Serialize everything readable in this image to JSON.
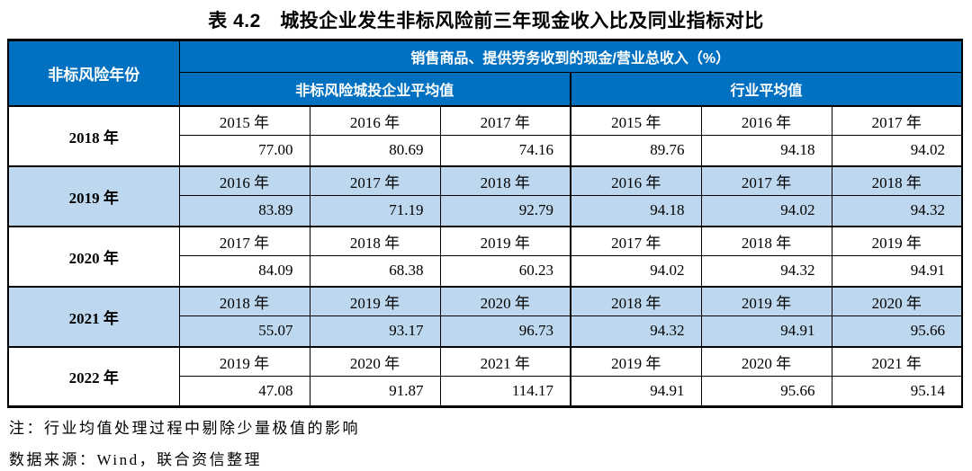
{
  "title": "表 4.2　城投企业发生非标风险前三年现金收入比及同业指标对比",
  "table": {
    "row_header": "非标风险年份",
    "metric_header": "销售商品、提供劳务收到的现金/营业总收入（%）",
    "group_headers": [
      "非标风险城投企业平均值",
      "行业平均值"
    ],
    "rows": [
      {
        "risk_year": "2018 年",
        "years": [
          "2015 年",
          "2016 年",
          "2017 年",
          "2015 年",
          "2016 年",
          "2017 年"
        ],
        "values": [
          "77.00",
          "80.69",
          "74.16",
          "89.76",
          "94.18",
          "94.02"
        ],
        "highlighted": false
      },
      {
        "risk_year": "2019 年",
        "years": [
          "2016 年",
          "2017 年",
          "2018 年",
          "2016 年",
          "2017 年",
          "2018 年"
        ],
        "values": [
          "83.89",
          "71.19",
          "92.79",
          "94.18",
          "94.02",
          "94.32"
        ],
        "highlighted": true
      },
      {
        "risk_year": "2020 年",
        "years": [
          "2017 年",
          "2018 年",
          "2019 年",
          "2017 年",
          "2018 年",
          "2019 年"
        ],
        "values": [
          "84.09",
          "68.38",
          "60.23",
          "94.02",
          "94.32",
          "94.91"
        ],
        "highlighted": false
      },
      {
        "risk_year": "2021 年",
        "years": [
          "2018 年",
          "2019 年",
          "2020 年",
          "2018 年",
          "2019 年",
          "2020 年"
        ],
        "values": [
          "55.07",
          "93.17",
          "96.73",
          "94.32",
          "94.91",
          "95.66"
        ],
        "highlighted": true
      },
      {
        "risk_year": "2022 年",
        "years": [
          "2019 年",
          "2020 年",
          "2021 年",
          "2019 年",
          "2020 年",
          "2021 年"
        ],
        "values": [
          "47.08",
          "91.87",
          "114.17",
          "94.91",
          "95.66",
          "95.14"
        ],
        "highlighted": false
      }
    ]
  },
  "notes": [
    "注：行业均值处理过程中剔除少量极值的影响",
    "数据来源：Wind，联合资信整理"
  ],
  "colors": {
    "header_blue": "#0070C0",
    "highlight_blue": "#BDD7EE",
    "border_black": "#000000"
  }
}
